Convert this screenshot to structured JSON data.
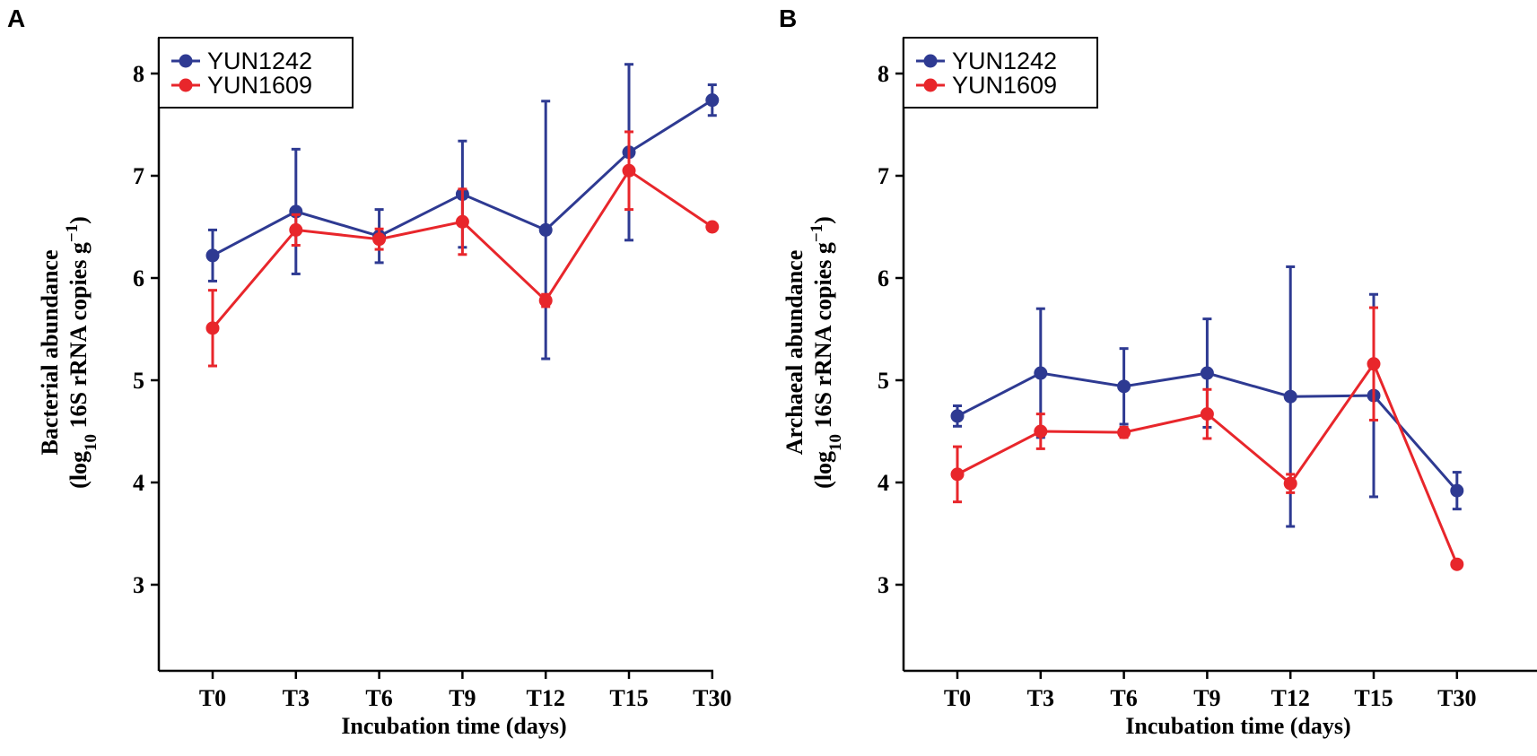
{
  "chart_data": [
    {
      "panel_label": "A",
      "type": "line",
      "categories": [
        "T0",
        "T3",
        "T6",
        "T9",
        "T12",
        "T15",
        "T30"
      ],
      "xlabel": "Incubation time (days)",
      "ylabel": {
        "line1": "Bacterial abundance",
        "line2_prefix": "(log",
        "line2_sub": "10",
        "line2_rest": " 16S rRNA copies g",
        "line2_sup": "−1",
        "line2_end": ")"
      },
      "ylim": [
        2.2,
        8.45
      ],
      "yticks": [
        3,
        4,
        5,
        6,
        7,
        8
      ],
      "legend_position": "top-left",
      "series": [
        {
          "name": "YUN1242",
          "color": "#2e3a92",
          "values": [
            6.22,
            6.65,
            6.41,
            6.82,
            6.47,
            7.23,
            7.74
          ],
          "err": [
            0.25,
            0.61,
            0.26,
            0.52,
            1.26,
            0.86,
            0.15
          ]
        },
        {
          "name": "YUN1609",
          "color": "#e8262b",
          "values": [
            5.51,
            6.47,
            6.38,
            6.55,
            5.78,
            7.05,
            6.5
          ],
          "err": [
            0.37,
            0.15,
            0.1,
            0.32,
            0.06,
            0.38,
            0.03
          ]
        }
      ]
    },
    {
      "panel_label": "B",
      "type": "line",
      "categories": [
        "T0",
        "T3",
        "T6",
        "T9",
        "T12",
        "T15",
        "T30"
      ],
      "xlabel": "Incubation time (days)",
      "ylabel": {
        "line1": "Archaeal abundance",
        "line2_prefix": "(log",
        "line2_sub": "10",
        "line2_rest": " 16S rRNA copies g",
        "line2_sup": "−1",
        "line2_end": ")"
      },
      "ylim": [
        2.2,
        8.45
      ],
      "yticks": [
        3,
        4,
        5,
        6,
        7,
        8
      ],
      "legend_position": "top-left",
      "series": [
        {
          "name": "YUN1242",
          "color": "#2e3a92",
          "values": [
            4.65,
            5.07,
            4.94,
            5.07,
            4.84,
            4.85,
            3.92
          ],
          "err": [
            0.1,
            0.63,
            0.37,
            0.53,
            1.27,
            0.99,
            0.18
          ]
        },
        {
          "name": "YUN1609",
          "color": "#e8262b",
          "values": [
            4.08,
            4.5,
            4.49,
            4.67,
            3.99,
            5.16,
            3.2
          ],
          "err": [
            0.27,
            0.17,
            0.05,
            0.24,
            0.09,
            0.55,
            0.03
          ]
        }
      ]
    }
  ]
}
